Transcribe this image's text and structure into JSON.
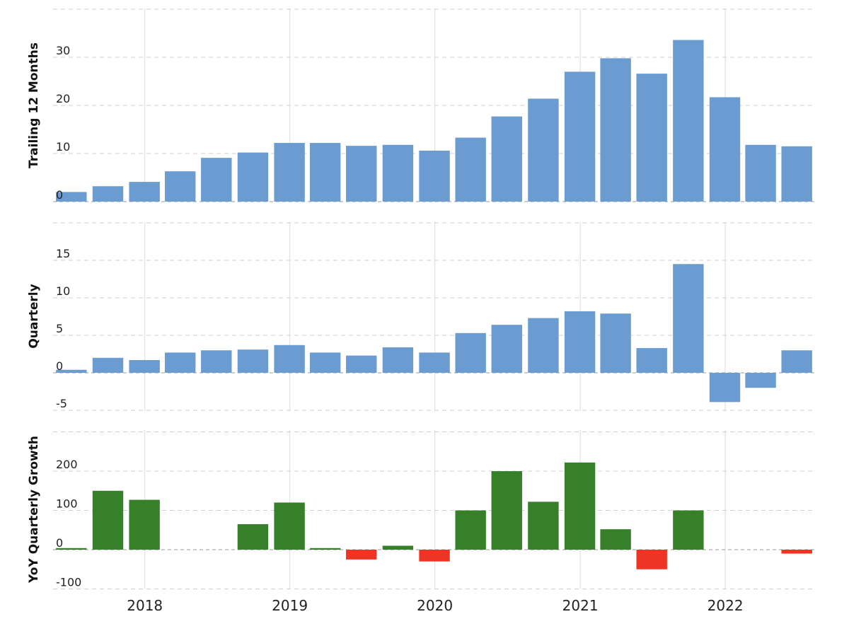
{
  "chart_data": [
    {
      "type": "bar",
      "ylabel": "Trailing 12 Months",
      "ylim": [
        0,
        40
      ],
      "yticks": [
        0,
        10,
        20,
        30
      ],
      "grid": true,
      "bar_color": "#6a9cd1",
      "negative_color": "#6a9cd1",
      "x": [
        "2017-06-30",
        "2017-09-30",
        "2017-12-31",
        "2018-03-31",
        "2018-06-30",
        "2018-09-30",
        "2018-12-31",
        "2019-03-31",
        "2019-06-30",
        "2019-09-30",
        "2019-12-31",
        "2020-03-31",
        "2020-06-30",
        "2020-09-30",
        "2020-12-31",
        "2021-03-31",
        "2021-06-30",
        "2021-09-30",
        "2021-12-31",
        "2022-03-31",
        "2022-06-30"
      ],
      "values": [
        2.0,
        3.2,
        4.1,
        6.3,
        9.1,
        10.2,
        12.2,
        12.2,
        11.6,
        11.8,
        10.6,
        13.3,
        17.7,
        21.4,
        27.0,
        29.8,
        26.6,
        33.6,
        21.7,
        11.8,
        11.5
      ]
    },
    {
      "type": "bar",
      "ylabel": "Quarterly",
      "ylim": [
        -5,
        20
      ],
      "yticks": [
        -5,
        0,
        5,
        10,
        15
      ],
      "grid": true,
      "bar_color": "#6a9cd1",
      "negative_color": "#6a9cd1",
      "x": [
        "2017-06-30",
        "2017-09-30",
        "2017-12-31",
        "2018-03-31",
        "2018-06-30",
        "2018-09-30",
        "2018-12-31",
        "2019-03-31",
        "2019-06-30",
        "2019-09-30",
        "2019-12-31",
        "2020-03-31",
        "2020-06-30",
        "2020-09-30",
        "2020-12-31",
        "2021-03-31",
        "2021-06-30",
        "2021-09-30",
        "2021-12-31",
        "2022-03-31",
        "2022-06-30"
      ],
      "values": [
        0.4,
        2.0,
        1.7,
        2.7,
        3.0,
        3.1,
        3.7,
        2.7,
        2.3,
        3.4,
        2.7,
        5.3,
        6.4,
        7.3,
        8.2,
        7.9,
        3.3,
        14.5,
        -3.9,
        -2.0,
        3.0
      ]
    },
    {
      "type": "bar",
      "ylabel": "YoY Quarterly Growth",
      "ylim": [
        -100,
        300
      ],
      "yticks": [
        -100,
        0,
        100,
        200
      ],
      "grid": true,
      "bar_color": "#368029",
      "negative_color": "#ee3425",
      "x": [
        "2017-06-30",
        "2017-09-30",
        "2017-12-31",
        "2018-03-31",
        "2018-06-30",
        "2018-09-30",
        "2018-12-31",
        "2019-03-31",
        "2019-06-30",
        "2019-09-30",
        "2019-12-31",
        "2020-03-31",
        "2020-06-30",
        "2020-09-30",
        "2020-12-31",
        "2021-03-31",
        "2021-06-30",
        "2021-09-30",
        "2021-12-31",
        "2022-03-31",
        "2022-06-30"
      ],
      "values": [
        4,
        150,
        127,
        null,
        null,
        65,
        120,
        4,
        -25,
        10,
        -30,
        100,
        200,
        122,
        222,
        52,
        -50,
        100,
        null,
        null,
        -10
      ]
    }
  ],
  "x_axis": {
    "labels": [
      "2018",
      "2019",
      "2020",
      "2021",
      "2022"
    ],
    "positions": [
      "2018-01-01",
      "2019-01-01",
      "2020-01-01",
      "2021-01-01",
      "2022-01-01"
    ],
    "range": [
      "2017-05-15",
      "2022-08-15"
    ]
  }
}
